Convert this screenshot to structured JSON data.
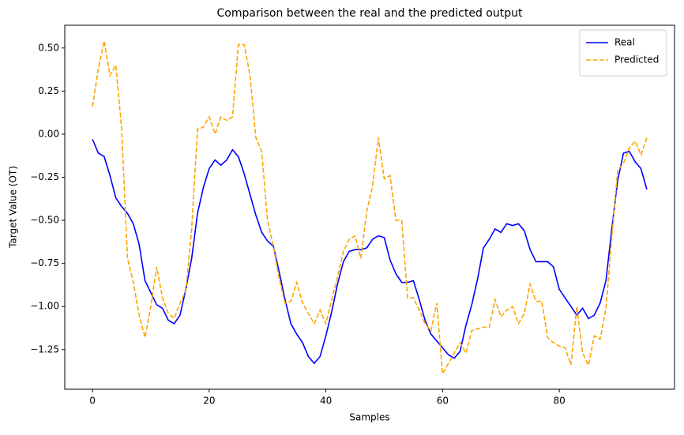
{
  "chart_data": {
    "type": "line",
    "title": "Comparison between the real and the predicted output",
    "x_label": "Samples",
    "y_label": "Target Value (OT)",
    "x": [
      0,
      1,
      2,
      3,
      4,
      5,
      6,
      7,
      8,
      9,
      10,
      11,
      12,
      13,
      14,
      15,
      16,
      17,
      18,
      19,
      20,
      21,
      22,
      23,
      24,
      25,
      26,
      27,
      28,
      29,
      30,
      31,
      32,
      33,
      34,
      35,
      36,
      37,
      38,
      39,
      40,
      41,
      42,
      43,
      44,
      45,
      46,
      47,
      48,
      49,
      50,
      51,
      52,
      53,
      54,
      55,
      56,
      57,
      58,
      59,
      60,
      61,
      62,
      63,
      64,
      65,
      66,
      67,
      68,
      69,
      70,
      71,
      72,
      73,
      74,
      75,
      76,
      77,
      78,
      79,
      80,
      81,
      82,
      83,
      84,
      85,
      86,
      87,
      88,
      89,
      90,
      91,
      92,
      93,
      94,
      95
    ],
    "series": [
      {
        "name": "Real",
        "color": "#0000ff",
        "linestyle": "solid",
        "values": [
          -0.03,
          -0.11,
          -0.13,
          -0.24,
          -0.37,
          -0.42,
          -0.46,
          -0.52,
          -0.64,
          -0.85,
          -0.92,
          -0.99,
          -1.01,
          -1.08,
          -1.1,
          -1.05,
          -0.9,
          -0.72,
          -0.46,
          -0.31,
          -0.2,
          -0.15,
          -0.18,
          -0.15,
          -0.09,
          -0.13,
          -0.23,
          -0.35,
          -0.47,
          -0.57,
          -0.62,
          -0.65,
          -0.8,
          -0.96,
          -1.1,
          -1.16,
          -1.21,
          -1.29,
          -1.33,
          -1.29,
          -1.17,
          -1.03,
          -0.87,
          -0.74,
          -0.68,
          -0.67,
          -0.67,
          -0.66,
          -0.61,
          -0.59,
          -0.6,
          -0.73,
          -0.81,
          -0.86,
          -0.86,
          -0.85,
          -0.96,
          -1.08,
          -1.16,
          -1.2,
          -1.24,
          -1.28,
          -1.3,
          -1.26,
          -1.11,
          -0.99,
          -0.84,
          -0.66,
          -0.61,
          -0.55,
          -0.57,
          -0.52,
          -0.53,
          -0.52,
          -0.56,
          -0.67,
          -0.74,
          -0.74,
          -0.74,
          -0.77,
          -0.9,
          -0.95,
          -1.0,
          -1.05,
          -1.01,
          -1.07,
          -1.05,
          -0.98,
          -0.85,
          -0.55,
          -0.27,
          -0.11,
          -0.1,
          -0.16,
          -0.2,
          -0.32
        ]
      },
      {
        "name": "Predicted",
        "color": "#ffa500",
        "linestyle": "dashed",
        "values": [
          0.16,
          0.38,
          0.54,
          0.34,
          0.4,
          0.03,
          -0.72,
          -0.86,
          -1.05,
          -1.18,
          -1.0,
          -0.77,
          -0.95,
          -1.04,
          -1.07,
          -0.98,
          -0.91,
          -0.55,
          0.03,
          0.04,
          0.1,
          0.0,
          0.1,
          0.08,
          0.1,
          0.52,
          0.52,
          0.34,
          -0.02,
          -0.1,
          -0.5,
          -0.65,
          -0.84,
          -0.98,
          -0.97,
          -0.86,
          -0.98,
          -1.04,
          -1.1,
          -1.02,
          -1.1,
          -0.96,
          -0.83,
          -0.68,
          -0.61,
          -0.59,
          -0.72,
          -0.45,
          -0.3,
          -0.02,
          -0.26,
          -0.24,
          -0.5,
          -0.5,
          -0.95,
          -0.95,
          -1.02,
          -1.1,
          -1.14,
          -0.98,
          -1.39,
          -1.33,
          -1.27,
          -1.21,
          -1.27,
          -1.14,
          -1.13,
          -1.12,
          -1.12,
          -0.96,
          -1.06,
          -1.02,
          -1.0,
          -1.1,
          -1.04,
          -0.87,
          -0.97,
          -0.97,
          -1.18,
          -1.21,
          -1.23,
          -1.24,
          -1.34,
          -1.0,
          -1.27,
          -1.34,
          -1.17,
          -1.19,
          -1.01,
          -0.6,
          -0.21,
          -0.17,
          -0.08,
          -0.04,
          -0.12,
          -0.02
        ]
      }
    ],
    "xlim": [
      -4.75,
      99.75
    ],
    "xticks": [
      0,
      20,
      40,
      60,
      80
    ],
    "ylim": [
      -1.48,
      0.632
    ],
    "yticks": [
      {
        "value": 0.5,
        "label": "0.50"
      },
      {
        "value": 0.25,
        "label": "0.25"
      },
      {
        "value": 0,
        "label": "0.00"
      },
      {
        "value": -0.25,
        "label": "−0.25"
      },
      {
        "value": -0.5,
        "label": "−0.50"
      },
      {
        "value": -0.75,
        "label": "−0.75"
      },
      {
        "value": -1,
        "label": "−1.00"
      },
      {
        "value": -1.25,
        "label": "−1.25"
      }
    ],
    "legend": "upper right",
    "grid": false
  }
}
